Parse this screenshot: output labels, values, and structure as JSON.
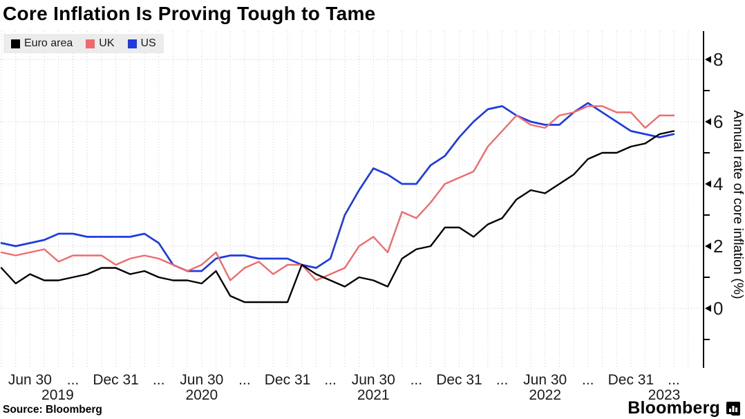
{
  "title": "Core Inflation Is Proving Tough to Tame",
  "legend": {
    "items": [
      {
        "label": "Euro area",
        "color": "#000000"
      },
      {
        "label": "UK",
        "color": "#f16a6b"
      },
      {
        "label": "US",
        "color": "#1d3be0"
      }
    ]
  },
  "footer": {
    "source": "Source: Bloomberg",
    "brand": "Bloomberg",
    "brand_icon": "bar-chart-bubble-icon"
  },
  "chart_data": {
    "type": "line",
    "title": "Core Inflation Is Proving Tough to Tame",
    "ylabel": "Annual rate of core inflation (%)",
    "ylim": [
      -1.9,
      9.0
    ],
    "y_major_ticks": [
      8,
      6,
      4,
      2,
      0
    ],
    "y_minor_ticks": [
      7,
      5,
      3,
      1,
      -1
    ],
    "grid": "dotted monthly vertical lines and dotted horizontal lines at major ticks",
    "legend_position": "top-left",
    "x": [
      "Apr 2019",
      "May 2019",
      "Jun 2019",
      "Jul 2019",
      "Aug 2019",
      "Sep 2019",
      "Oct 2019",
      "Nov 2019",
      "Dec 2019",
      "Jan 2020",
      "Feb 2020",
      "Mar 2020",
      "Apr 2020",
      "May 2020",
      "Jun 2020",
      "Jul 2020",
      "Aug 2020",
      "Sep 2020",
      "Oct 2020",
      "Nov 2020",
      "Dec 2020",
      "Jan 2021",
      "Feb 2021",
      "Mar 2021",
      "Apr 2021",
      "May 2021",
      "Jun 2021",
      "Jul 2021",
      "Aug 2021",
      "Sep 2021",
      "Oct 2021",
      "Nov 2021",
      "Dec 2021",
      "Jan 2022",
      "Feb 2022",
      "Mar 2022",
      "Apr 2022",
      "May 2022",
      "Jun 2022",
      "Jul 2022",
      "Aug 2022",
      "Sep 2022",
      "Oct 2022",
      "Nov 2022",
      "Dec 2022",
      "Jan 2023",
      "Feb 2023",
      "Mar 2023"
    ],
    "x_ticks": [
      {
        "index": 2,
        "label": "Jun 30",
        "year": "2019"
      },
      {
        "index": 5,
        "label": "..."
      },
      {
        "index": 8,
        "label": "Dec 31"
      },
      {
        "index": 11,
        "label": "..."
      },
      {
        "index": 14,
        "label": "Jun 30",
        "year": "2020"
      },
      {
        "index": 17,
        "label": "..."
      },
      {
        "index": 20,
        "label": "Dec 31"
      },
      {
        "index": 23,
        "label": "..."
      },
      {
        "index": 26,
        "label": "Jun 30",
        "year": "2021"
      },
      {
        "index": 29,
        "label": "..."
      },
      {
        "index": 32,
        "label": "Dec 31"
      },
      {
        "index": 35,
        "label": "..."
      },
      {
        "index": 38,
        "label": "Jun 30",
        "year": "2022"
      },
      {
        "index": 41,
        "label": "..."
      },
      {
        "index": 44,
        "label": "Dec 31"
      },
      {
        "index": 47,
        "label": "...",
        "year": "2023"
      }
    ],
    "series": [
      {
        "name": "Euro area",
        "color": "#000000",
        "values": [
          1.3,
          0.8,
          1.1,
          0.9,
          0.9,
          1.0,
          1.1,
          1.3,
          1.3,
          1.1,
          1.2,
          1.0,
          0.9,
          0.9,
          0.8,
          1.2,
          0.4,
          0.2,
          0.2,
          0.2,
          0.2,
          1.4,
          1.1,
          0.9,
          0.7,
          1.0,
          0.9,
          0.7,
          1.6,
          1.9,
          2.0,
          2.6,
          2.6,
          2.3,
          2.7,
          2.9,
          3.5,
          3.8,
          3.7,
          4.0,
          4.3,
          4.8,
          5.0,
          5.0,
          5.2,
          5.3,
          5.6,
          5.7
        ]
      },
      {
        "name": "UK",
        "color": "#f16a6b",
        "values": [
          1.8,
          1.7,
          1.8,
          1.9,
          1.5,
          1.7,
          1.7,
          1.7,
          1.4,
          1.6,
          1.7,
          1.6,
          1.4,
          1.2,
          1.4,
          1.8,
          0.9,
          1.3,
          1.5,
          1.1,
          1.4,
          1.4,
          0.9,
          1.1,
          1.3,
          2.0,
          2.3,
          1.8,
          3.1,
          2.9,
          3.4,
          4.0,
          4.2,
          4.4,
          5.2,
          5.7,
          6.2,
          5.9,
          5.8,
          6.2,
          6.3,
          6.5,
          6.5,
          6.3,
          6.3,
          5.8,
          6.2,
          6.2
        ]
      },
      {
        "name": "US",
        "color": "#1d3be0",
        "values": [
          2.1,
          2.0,
          2.1,
          2.2,
          2.4,
          2.4,
          2.3,
          2.3,
          2.3,
          2.3,
          2.4,
          2.1,
          1.4,
          1.2,
          1.2,
          1.6,
          1.7,
          1.7,
          1.6,
          1.6,
          1.6,
          1.4,
          1.3,
          1.6,
          3.0,
          3.8,
          4.5,
          4.3,
          4.0,
          4.0,
          4.6,
          4.9,
          5.5,
          6.0,
          6.4,
          6.5,
          6.2,
          6.0,
          5.9,
          5.9,
          6.3,
          6.6,
          6.3,
          6.0,
          5.7,
          5.6,
          5.5,
          5.6
        ]
      }
    ]
  }
}
